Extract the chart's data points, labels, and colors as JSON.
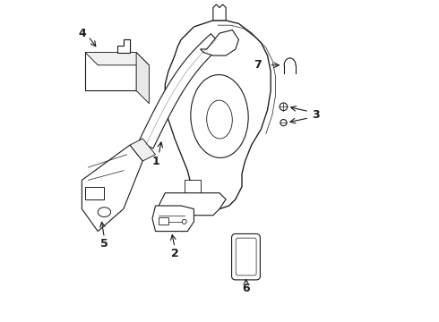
{
  "background_color": "#ffffff",
  "line_color": "#1a1a1a",
  "fig_width": 4.9,
  "fig_height": 3.6,
  "dpi": 100,
  "font_size": 9
}
